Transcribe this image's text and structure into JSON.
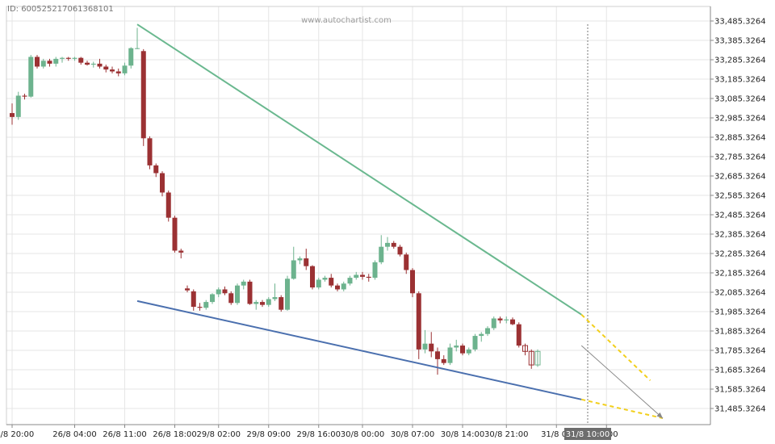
{
  "header": {
    "id_text": "ID: 600525217061368101",
    "watermark": "www.autochartist.com"
  },
  "colors": {
    "bull": "#6db38e",
    "bear": "#9b3133",
    "grid": "#e6e6e6",
    "resistance": "#6ab88f",
    "support": "#4a6fae",
    "forecast": "#f2cf1c",
    "projection": "#888888"
  },
  "chart_data": {
    "type": "candlestick",
    "title": "",
    "ylim": [
      31435.3264,
      33505.3264
    ],
    "y_ticks": [
      "33,485.3264",
      "33,385.3264",
      "33,285.3264",
      "33,185.3264",
      "33,085.3264",
      "32,985.3264",
      "32,885.3264",
      "32,785.3264",
      "32,685.3264",
      "32,585.3264",
      "32,485.3264",
      "32,385.3264",
      "32,285.3264",
      "32,185.3264",
      "32,085.3264",
      "31,985.3264",
      "31,885.3264",
      "31,785.3264",
      "31,685.3264",
      "31,585.3264",
      "31,485.3264"
    ],
    "y_tick_values": [
      33485.3264,
      33385.3264,
      33285.3264,
      33185.3264,
      33085.3264,
      32985.3264,
      32885.3264,
      32785.3264,
      32685.3264,
      32585.3264,
      32485.3264,
      32385.3264,
      32285.3264,
      32185.3264,
      32085.3264,
      31985.3264,
      31885.3264,
      31785.3264,
      31685.3264,
      31585.3264,
      31485.3264
    ],
    "x_ticks": [
      {
        "label": "25/8 20:00",
        "bar": 0
      },
      {
        "label": "26/8 04:00",
        "bar": 10
      },
      {
        "label": "26/8 11:00",
        "bar": 18
      },
      {
        "label": "26/8 18:00",
        "bar": 26
      },
      {
        "label": "29/8 02:00",
        "bar": 33
      },
      {
        "label": "29/8 09:00",
        "bar": 41
      },
      {
        "label": "29/8 16:00",
        "bar": 49
      },
      {
        "label": "30/8 00:00",
        "bar": 56
      },
      {
        "label": "30/8 07:00",
        "bar": 64
      },
      {
        "label": "30/8 14:00",
        "bar": 72
      },
      {
        "label": "30/8 21:00",
        "bar": 79
      },
      {
        "label": "31/8 05",
        "bar": 87
      },
      {
        "label": "12:00",
        "bar": 95
      }
    ],
    "highlight": {
      "label": "31/8 10:00",
      "bar": 92
    },
    "candles": [
      {
        "o": 33010,
        "h": 33060,
        "l": 32950,
        "c": 32990
      },
      {
        "o": 32990,
        "h": 33120,
        "l": 32975,
        "c": 33100
      },
      {
        "o": 33100,
        "h": 33110,
        "l": 33080,
        "c": 33095
      },
      {
        "o": 33095,
        "h": 33310,
        "l": 33090,
        "c": 33300
      },
      {
        "o": 33300,
        "h": 33310,
        "l": 33240,
        "c": 33250
      },
      {
        "o": 33250,
        "h": 33290,
        "l": 33240,
        "c": 33280
      },
      {
        "o": 33280,
        "h": 33290,
        "l": 33250,
        "c": 33265
      },
      {
        "o": 33265,
        "h": 33300,
        "l": 33250,
        "c": 33290
      },
      {
        "o": 33290,
        "h": 33300,
        "l": 33270,
        "c": 33295
      },
      {
        "o": 33295,
        "h": 33300,
        "l": 33280,
        "c": 33290
      },
      {
        "o": 33290,
        "h": 33300,
        "l": 33280,
        "c": 33295
      },
      {
        "o": 33295,
        "h": 33300,
        "l": 33260,
        "c": 33270
      },
      {
        "o": 33270,
        "h": 33280,
        "l": 33255,
        "c": 33260
      },
      {
        "o": 33260,
        "h": 33275,
        "l": 33245,
        "c": 33265
      },
      {
        "o": 33265,
        "h": 33290,
        "l": 33240,
        "c": 33250
      },
      {
        "o": 33250,
        "h": 33260,
        "l": 33220,
        "c": 33235
      },
      {
        "o": 33235,
        "h": 33250,
        "l": 33215,
        "c": 33225
      },
      {
        "o": 33225,
        "h": 33240,
        "l": 33200,
        "c": 33215
      },
      {
        "o": 33215,
        "h": 33270,
        "l": 33205,
        "c": 33255
      },
      {
        "o": 33255,
        "h": 33350,
        "l": 33240,
        "c": 33345
      },
      {
        "o": 33345,
        "h": 33450,
        "l": 33340,
        "c": 33345
      },
      {
        "o": 33330,
        "h": 33340,
        "l": 32840,
        "c": 32880
      },
      {
        "o": 32880,
        "h": 32890,
        "l": 32720,
        "c": 32740
      },
      {
        "o": 32740,
        "h": 32750,
        "l": 32680,
        "c": 32700
      },
      {
        "o": 32700,
        "h": 32710,
        "l": 32580,
        "c": 32600
      },
      {
        "o": 32600,
        "h": 32610,
        "l": 32450,
        "c": 32470
      },
      {
        "o": 32470,
        "h": 32480,
        "l": 32290,
        "c": 32300
      },
      {
        "o": 32300,
        "h": 32310,
        "l": 32260,
        "c": 32290
      },
      {
        "o": 32105,
        "h": 32120,
        "l": 32085,
        "c": 32095
      },
      {
        "o": 32090,
        "h": 32100,
        "l": 31990,
        "c": 32010
      },
      {
        "o": 32010,
        "h": 32030,
        "l": 31990,
        "c": 32005
      },
      {
        "o": 32005,
        "h": 32045,
        "l": 31995,
        "c": 32035
      },
      {
        "o": 32035,
        "h": 32080,
        "l": 32025,
        "c": 32075
      },
      {
        "o": 32075,
        "h": 32110,
        "l": 32060,
        "c": 32100
      },
      {
        "o": 32100,
        "h": 32115,
        "l": 32070,
        "c": 32080
      },
      {
        "o": 32080,
        "h": 32090,
        "l": 32020,
        "c": 32030
      },
      {
        "o": 32030,
        "h": 32130,
        "l": 32020,
        "c": 32120
      },
      {
        "o": 32120,
        "h": 32150,
        "l": 32100,
        "c": 32140
      },
      {
        "o": 32140,
        "h": 32150,
        "l": 32020,
        "c": 32025
      },
      {
        "o": 32025,
        "h": 32045,
        "l": 31995,
        "c": 32035
      },
      {
        "o": 32035,
        "h": 32045,
        "l": 32010,
        "c": 32020
      },
      {
        "o": 32020,
        "h": 32060,
        "l": 32010,
        "c": 32050
      },
      {
        "o": 32050,
        "h": 32130,
        "l": 32040,
        "c": 32060
      },
      {
        "o": 32060,
        "h": 32070,
        "l": 31985,
        "c": 31995
      },
      {
        "o": 31995,
        "h": 32170,
        "l": 31990,
        "c": 32155
      },
      {
        "o": 32155,
        "h": 32320,
        "l": 32150,
        "c": 32250
      },
      {
        "o": 32250,
        "h": 32270,
        "l": 32230,
        "c": 32260
      },
      {
        "o": 32260,
        "h": 32310,
        "l": 32200,
        "c": 32220
      },
      {
        "o": 32220,
        "h": 32225,
        "l": 32100,
        "c": 32110
      },
      {
        "o": 32110,
        "h": 32160,
        "l": 32100,
        "c": 32150
      },
      {
        "o": 32150,
        "h": 32170,
        "l": 32140,
        "c": 32160
      },
      {
        "o": 32160,
        "h": 32180,
        "l": 32110,
        "c": 32120
      },
      {
        "o": 32120,
        "h": 32130,
        "l": 32090,
        "c": 32100
      },
      {
        "o": 32100,
        "h": 32140,
        "l": 32090,
        "c": 32130
      },
      {
        "o": 32130,
        "h": 32170,
        "l": 32120,
        "c": 32160
      },
      {
        "o": 32160,
        "h": 32190,
        "l": 32150,
        "c": 32175
      },
      {
        "o": 32175,
        "h": 32190,
        "l": 32150,
        "c": 32165
      },
      {
        "o": 32165,
        "h": 32180,
        "l": 32140,
        "c": 32160
      },
      {
        "o": 32160,
        "h": 32250,
        "l": 32150,
        "c": 32240
      },
      {
        "o": 32240,
        "h": 32380,
        "l": 32230,
        "c": 32320
      },
      {
        "o": 32320,
        "h": 32370,
        "l": 32300,
        "c": 32340
      },
      {
        "o": 32340,
        "h": 32350,
        "l": 32310,
        "c": 32320
      },
      {
        "o": 32320,
        "h": 32330,
        "l": 32270,
        "c": 32280
      },
      {
        "o": 32280,
        "h": 32290,
        "l": 32180,
        "c": 32200
      },
      {
        "o": 32200,
        "h": 32210,
        "l": 32060,
        "c": 32080
      },
      {
        "o": 32080,
        "h": 32090,
        "l": 31740,
        "c": 31790
      },
      {
        "o": 31790,
        "h": 31890,
        "l": 31770,
        "c": 31820
      },
      {
        "o": 31820,
        "h": 31880,
        "l": 31750,
        "c": 31780
      },
      {
        "o": 31780,
        "h": 31800,
        "l": 31660,
        "c": 31740
      },
      {
        "o": 31740,
        "h": 31760,
        "l": 31710,
        "c": 31720
      },
      {
        "o": 31720,
        "h": 31820,
        "l": 31710,
        "c": 31800
      },
      {
        "o": 31800,
        "h": 31840,
        "l": 31780,
        "c": 31810
      },
      {
        "o": 31810,
        "h": 31820,
        "l": 31760,
        "c": 31770
      },
      {
        "o": 31770,
        "h": 31800,
        "l": 31760,
        "c": 31790
      },
      {
        "o": 31790,
        "h": 31870,
        "l": 31780,
        "c": 31860
      },
      {
        "o": 31860,
        "h": 31880,
        "l": 31830,
        "c": 31870
      },
      {
        "o": 31870,
        "h": 31910,
        "l": 31860,
        "c": 31900
      },
      {
        "o": 31900,
        "h": 31960,
        "l": 31890,
        "c": 31950
      },
      {
        "o": 31950,
        "h": 31960,
        "l": 31925,
        "c": 31940
      },
      {
        "o": 31940,
        "h": 31960,
        "l": 31925,
        "c": 31945
      },
      {
        "o": 31945,
        "h": 31955,
        "l": 31915,
        "c": 31920
      },
      {
        "o": 31920,
        "h": 31930,
        "l": 31800,
        "c": 31810
      }
    ],
    "forecast_candles": [
      {
        "o": 31810,
        "h": 31820,
        "l": 31760,
        "c": 31780
      },
      {
        "o": 31780,
        "h": 31790,
        "l": 31690,
        "c": 31710
      },
      {
        "o": 31710,
        "h": 31790,
        "l": 31700,
        "c": 31780
      }
    ],
    "lines": {
      "resistance": {
        "x1": 20,
        "y1": 33468,
        "x2": 91,
        "y2": 31970
      },
      "support": {
        "x1": 20,
        "y1": 32040,
        "x2": 91,
        "y2": 31532
      },
      "resistance_forecast": {
        "x1": 91,
        "y1": 31970,
        "x2": 102,
        "y2": 31630
      },
      "support_forecast": {
        "x1": 91,
        "y1": 31532,
        "x2": 104,
        "y2": 31435
      },
      "projection": {
        "x1": 91,
        "y1": 31810,
        "x2": 104,
        "y2": 31435
      }
    }
  }
}
